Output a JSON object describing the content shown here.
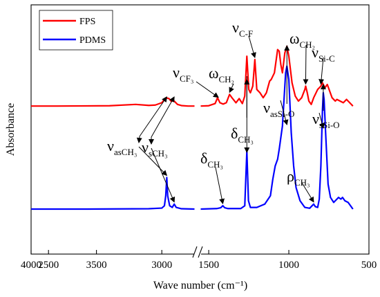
{
  "chart_data": {
    "type": "line",
    "title": "",
    "xlabel": "Wave number (cm⁻¹)",
    "ylabel": "Absorbance",
    "x_axis": {
      "reversed": true,
      "broken": true,
      "segments": [
        [
          4000,
          2750
        ],
        [
          1550,
          500
        ]
      ],
      "ticks": [
        4000,
        3500,
        3000,
        2500,
        1500,
        1000,
        500
      ],
      "tick_labels": [
        "4000",
        "3500",
        "3000",
        "2500",
        "1500",
        "1000",
        "500"
      ]
    },
    "y_axis": {
      "ticks_shown": false
    },
    "legend": {
      "placement": "top-left"
    },
    "series": [
      {
        "name": "FPS",
        "color": "#ff0000",
        "offset": 0.62,
        "points": [
          [
            4000,
            0.0
          ],
          [
            3800,
            0.0
          ],
          [
            3400,
            0.002
          ],
          [
            3200,
            0.01
          ],
          [
            3100,
            0.004
          ],
          [
            3050,
            0.006
          ],
          [
            3000,
            0.02
          ],
          [
            2968,
            0.05
          ],
          [
            2945,
            0.045
          ],
          [
            2930,
            0.03
          ],
          [
            2905,
            0.03
          ],
          [
            2880,
            0.01
          ],
          [
            2850,
            0.003
          ],
          [
            2800,
            0.0
          ],
          [
            2750,
            0.0
          ],
          [
            1550,
            0.0
          ],
          [
            1500,
            0.002
          ],
          [
            1460,
            0.015
          ],
          [
            1445,
            0.05
          ],
          [
            1430,
            0.02
          ],
          [
            1410,
            0.012
          ],
          [
            1390,
            0.02
          ],
          [
            1370,
            0.07
          ],
          [
            1355,
            0.05
          ],
          [
            1330,
            0.02
          ],
          [
            1310,
            0.045
          ],
          [
            1290,
            0.015
          ],
          [
            1275,
            0.06
          ],
          [
            1262,
            0.3
          ],
          [
            1250,
            0.1
          ],
          [
            1240,
            0.08
          ],
          [
            1225,
            0.12
          ],
          [
            1212,
            0.28
          ],
          [
            1200,
            0.1
          ],
          [
            1180,
            0.08
          ],
          [
            1160,
            0.05
          ],
          [
            1140,
            0.08
          ],
          [
            1120,
            0.15
          ],
          [
            1110,
            0.16
          ],
          [
            1090,
            0.2
          ],
          [
            1070,
            0.34
          ],
          [
            1060,
            0.33
          ],
          [
            1050,
            0.25
          ],
          [
            1040,
            0.2
          ],
          [
            1025,
            0.32
          ],
          [
            1012,
            0.36
          ],
          [
            1000,
            0.3
          ],
          [
            980,
            0.14
          ],
          [
            960,
            0.06
          ],
          [
            940,
            0.03
          ],
          [
            920,
            0.05
          ],
          [
            900,
            0.1
          ],
          [
            895,
            0.12
          ],
          [
            885,
            0.08
          ],
          [
            875,
            0.03
          ],
          [
            860,
            0.01
          ],
          [
            845,
            0.05
          ],
          [
            820,
            0.1
          ],
          [
            800,
            0.12
          ],
          [
            790,
            0.14
          ],
          [
            775,
            0.11
          ],
          [
            760,
            0.13
          ],
          [
            745,
            0.09
          ],
          [
            730,
            0.05
          ],
          [
            710,
            0.03
          ],
          [
            700,
            0.04
          ],
          [
            680,
            0.03
          ],
          [
            660,
            0.02
          ],
          [
            640,
            0.04
          ],
          [
            620,
            0.02
          ],
          [
            600,
            0.0
          ]
        ]
      },
      {
        "name": "PDMS",
        "color": "#0000ff",
        "offset": 0.0,
        "points": [
          [
            4000,
            0.0
          ],
          [
            3600,
            0.0
          ],
          [
            3100,
            0.002
          ],
          [
            3000,
            0.006
          ],
          [
            2980,
            0.02
          ],
          [
            2970,
            0.08
          ],
          [
            2962,
            0.19
          ],
          [
            2955,
            0.08
          ],
          [
            2940,
            0.02
          ],
          [
            2920,
            0.01
          ],
          [
            2905,
            0.03
          ],
          [
            2890,
            0.01
          ],
          [
            2850,
            0.002
          ],
          [
            2750,
            0.0
          ],
          [
            1550,
            0.0
          ],
          [
            1450,
            0.003
          ],
          [
            1425,
            0.008
          ],
          [
            1412,
            0.02
          ],
          [
            1400,
            0.008
          ],
          [
            1380,
            0.003
          ],
          [
            1300,
            0.003
          ],
          [
            1275,
            0.02
          ],
          [
            1262,
            0.35
          ],
          [
            1252,
            0.05
          ],
          [
            1240,
            0.01
          ],
          [
            1200,
            0.01
          ],
          [
            1150,
            0.03
          ],
          [
            1115,
            0.08
          ],
          [
            1100,
            0.18
          ],
          [
            1085,
            0.26
          ],
          [
            1070,
            0.3
          ],
          [
            1060,
            0.36
          ],
          [
            1040,
            0.5
          ],
          [
            1030,
            0.66
          ],
          [
            1020,
            0.82
          ],
          [
            1012,
            0.86
          ],
          [
            1000,
            0.78
          ],
          [
            985,
            0.46
          ],
          [
            970,
            0.26
          ],
          [
            955,
            0.13
          ],
          [
            930,
            0.05
          ],
          [
            900,
            0.01
          ],
          [
            870,
            0.005
          ],
          [
            855,
            0.02
          ],
          [
            845,
            0.03
          ],
          [
            835,
            0.015
          ],
          [
            820,
            0.01
          ],
          [
            810,
            0.06
          ],
          [
            800,
            0.26
          ],
          [
            790,
            0.6
          ],
          [
            785,
            0.7
          ],
          [
            780,
            0.66
          ],
          [
            770,
            0.45
          ],
          [
            755,
            0.15
          ],
          [
            740,
            0.07
          ],
          [
            720,
            0.04
          ],
          [
            700,
            0.06
          ],
          [
            690,
            0.07
          ],
          [
            675,
            0.06
          ],
          [
            665,
            0.07
          ],
          [
            650,
            0.05
          ],
          [
            630,
            0.04
          ],
          [
            600,
            0.0
          ]
        ]
      }
    ],
    "annotations": [
      {
        "main": "ν",
        "sub": "CF₃",
        "arrow_to_wn": 1440,
        "series": "FPS"
      },
      {
        "main": "ω",
        "sub": "CH₂",
        "arrow_to_wn": 1370,
        "series": "FPS"
      },
      {
        "main": "ν",
        "sub": "C-F",
        "arrow_to_wn": 1212,
        "series": "FPS"
      },
      {
        "main": "ω",
        "sub": "CH₂",
        "arrow_to_wn": 895,
        "series": "FPS"
      },
      {
        "main": "ν",
        "sub": "Si-C",
        "arrow_to_wn": 800,
        "series": "FPS"
      },
      {
        "main": "ν",
        "sub": "asSi-O",
        "arrow_to_wn": 1012,
        "series": "FPS"
      },
      {
        "main": "ν",
        "sub": "sSi-O",
        "arrow_to_wn": 785,
        "series": "FPS"
      },
      {
        "main": "ν",
        "sub": "asCH₃",
        "arrow_to_wn": 2962,
        "series": "PDMS"
      },
      {
        "main": "ν",
        "sub": "sCH₃",
        "arrow_to_wn": 2905,
        "series": "PDMS"
      },
      {
        "main": "δ",
        "sub": "CH₃",
        "arrow_to_wn": 1262,
        "series": "PDMS"
      },
      {
        "main": "δ",
        "sub": "CH₃",
        "arrow_to_wn": 1412,
        "series": "PDMS"
      },
      {
        "main": "ρ",
        "sub": "CH₃",
        "arrow_to_wn": 845,
        "series": "PDMS"
      }
    ]
  }
}
